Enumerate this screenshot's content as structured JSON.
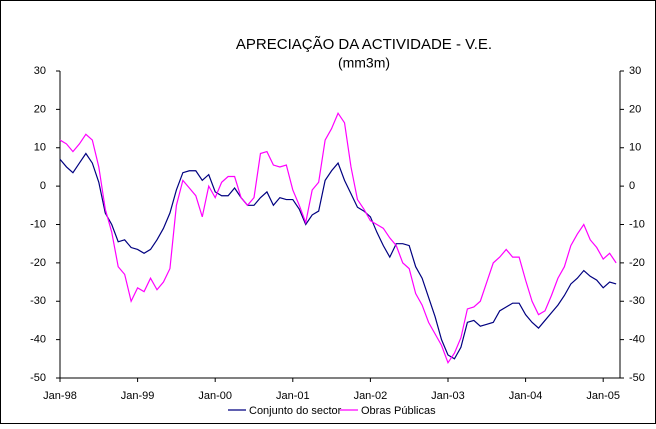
{
  "chart_data": {
    "type": "line",
    "title": "APRECIAÇÃO DA ACTIVIDADE - V.E.",
    "subtitle": "(mm3m)",
    "categories": [
      "Jan-98",
      null,
      null,
      null,
      null,
      null,
      null,
      null,
      null,
      null,
      null,
      null,
      "Jan-99",
      null,
      null,
      null,
      null,
      null,
      null,
      null,
      null,
      null,
      null,
      null,
      "Jan-00",
      null,
      null,
      null,
      null,
      null,
      null,
      null,
      null,
      null,
      null,
      null,
      "Jan-01",
      null,
      null,
      null,
      null,
      null,
      null,
      null,
      null,
      null,
      null,
      null,
      "Jan-02",
      null,
      null,
      null,
      null,
      null,
      null,
      null,
      null,
      null,
      null,
      null,
      "Jan-03",
      null,
      null,
      null,
      null,
      null,
      null,
      null,
      null,
      null,
      null,
      null,
      "Jan-04",
      null,
      null,
      null,
      null,
      null,
      null,
      null,
      null,
      null,
      null,
      null,
      "Jan-05",
      null,
      null
    ],
    "series": [
      {
        "name": "Conjunto do sector",
        "color": "#000080",
        "values": [
          7,
          5,
          3.5,
          6,
          8.5,
          6,
          1,
          -7,
          -10,
          -14.5,
          -14,
          -16,
          -16.5,
          -17.5,
          -16.5,
          -14,
          -11,
          -7,
          -1,
          3.5,
          4,
          4,
          1.5,
          3,
          -1.5,
          -2.5,
          -2.5,
          -0.5,
          -3,
          -5,
          -5,
          -3,
          -1.5,
          -5,
          -3,
          -3.5,
          -3.5,
          -6,
          -10,
          -7.5,
          -6.5,
          1.5,
          4,
          6,
          1.5,
          -2,
          -5.5,
          -6.5,
          -8,
          -12,
          -15.5,
          -18.5,
          -15,
          -15,
          -15.5,
          -21,
          -24,
          -29,
          -34,
          -40,
          -44,
          -45,
          -42,
          -35.5,
          -35,
          -36.5,
          -36,
          -35.5,
          -32.5,
          -31.5,
          -30.5,
          -30.5,
          -33.5,
          -35.5,
          -37,
          -35,
          -33,
          -31,
          -28.5,
          -25.5,
          -24,
          -22,
          -23.5,
          -24.5,
          -26.5,
          -25,
          -25.5
        ]
      },
      {
        "name": "Obras Públicas",
        "color": "#ff00ff",
        "values": [
          12,
          11,
          9,
          11,
          13.5,
          12,
          5,
          -6,
          -12,
          -21,
          -23,
          -30,
          -26.5,
          -27.5,
          -24,
          -27,
          -25,
          -21.5,
          -5,
          1.5,
          -0.5,
          -2.5,
          -8,
          0,
          -3,
          1,
          2.5,
          2.5,
          -3,
          -5,
          -3,
          8.5,
          9,
          5.5,
          5,
          5.5,
          -1,
          -5,
          -9.5,
          -1,
          1,
          12,
          15,
          19,
          16.5,
          5,
          -3.5,
          -6,
          -9,
          -10,
          -11,
          -13.5,
          -15.5,
          -20,
          -21.5,
          -28,
          -31,
          -35.5,
          -38.5,
          -41.5,
          -46,
          -43.5,
          -39.5,
          -32,
          -31.5,
          -30,
          -25,
          -20,
          -18.5,
          -16.5,
          -18.5,
          -18.5,
          -24.5,
          -30,
          -33.5,
          -32.5,
          -28.5,
          -24,
          -21,
          -15.5,
          -12.5,
          -10,
          -14,
          -16,
          -19,
          -17.5,
          -20
        ]
      }
    ],
    "ylim": [
      -50,
      30
    ],
    "yticks": [
      -50,
      -40,
      -30,
      -20,
      -10,
      0,
      10,
      20,
      30
    ],
    "y2lim": [
      -50,
      30
    ],
    "y2ticks": [
      -50,
      -40,
      -30,
      -20,
      -10,
      0,
      10,
      20,
      30
    ],
    "legend": "bottom"
  }
}
